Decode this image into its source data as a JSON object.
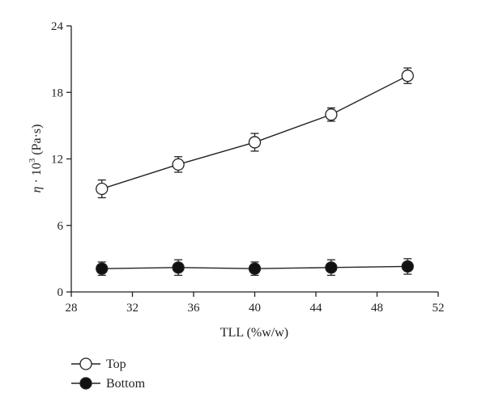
{
  "chart_data": {
    "type": "line",
    "xlabel": "TLL (%w/w)",
    "ylabel": {
      "symbol": "η",
      "mid": " · 10",
      "exponent": "3",
      "unit": " (Pa·s)"
    },
    "xlim": [
      28,
      52
    ],
    "ylim": [
      0,
      24
    ],
    "x_ticks": [
      28,
      32,
      36,
      40,
      44,
      48,
      52
    ],
    "y_ticks": [
      0,
      6,
      12,
      18,
      24
    ],
    "grid": false,
    "legend_position": "bottom-left",
    "x": [
      30,
      35,
      40,
      45,
      50
    ],
    "series": [
      {
        "name": "Top",
        "marker": "open-circle",
        "values": [
          9.3,
          11.5,
          13.5,
          16.0,
          19.5
        ],
        "errors": [
          0.8,
          0.7,
          0.8,
          0.6,
          0.7
        ]
      },
      {
        "name": "Bottom",
        "marker": "filled-circle",
        "values": [
          2.1,
          2.2,
          2.1,
          2.2,
          2.3
        ],
        "errors": [
          0.6,
          0.7,
          0.6,
          0.7,
          0.7
        ]
      }
    ],
    "colors": {
      "line": "#222222",
      "open_fill": "#ffffff",
      "filled_fill": "#111111"
    }
  }
}
